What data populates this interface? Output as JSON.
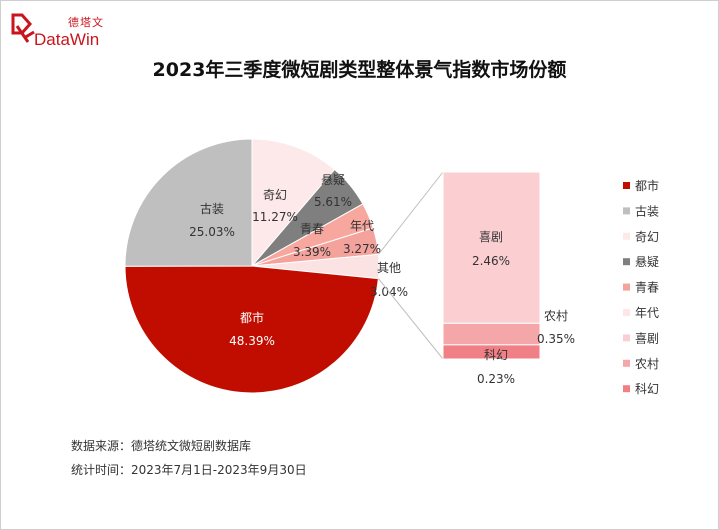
{
  "brand": {
    "logo_cn": "德塔文",
    "logo_en": "DataWin"
  },
  "chart_data": {
    "type": "pie",
    "title": "2023年三季度微短剧类型整体景气指数市场份额",
    "unit": "%",
    "slices": [
      {
        "name": "都市",
        "value": 48.39,
        "label": "48.39%",
        "color": "#c00d00"
      },
      {
        "name": "古装",
        "value": 25.03,
        "label": "25.03%",
        "color": "#bfbfbf"
      },
      {
        "name": "奇幻",
        "value": 11.27,
        "label": "11.27%",
        "color": "#fde8ea"
      },
      {
        "name": "悬疑",
        "value": 5.61,
        "label": "5.61%",
        "color": "#7f7f7f"
      },
      {
        "name": "青春",
        "value": 3.39,
        "label": "3.39%",
        "color": "#f4a29c"
      },
      {
        "name": "年代",
        "value": 3.27,
        "label": "3.27%",
        "color": "#f7a79d"
      },
      {
        "name": "其他",
        "value": 3.04,
        "label": "3.04%",
        "color": "#fbe3e4"
      }
    ],
    "breakdown_of": "其他",
    "breakdown": [
      {
        "name": "喜剧",
        "value": 2.46,
        "label": "2.46%",
        "color": "#fbcfd2"
      },
      {
        "name": "农村",
        "value": 0.35,
        "label": "0.35%",
        "color": "#f4a6a8"
      },
      {
        "name": "科幻",
        "value": 0.23,
        "label": "0.23%",
        "color": "#f07f86"
      }
    ],
    "legend": {
      "position": "right",
      "items": [
        {
          "name": "都市",
          "color": "#c00d00"
        },
        {
          "name": "古装",
          "color": "#bfbfbf"
        },
        {
          "name": "奇幻",
          "color": "#fde8ea"
        },
        {
          "name": "悬疑",
          "color": "#7f7f7f"
        },
        {
          "name": "青春",
          "color": "#f4a29c"
        },
        {
          "name": "年代",
          "color": "#fde5e8"
        },
        {
          "name": "喜剧",
          "color": "#fbcfd2"
        },
        {
          "name": "农村",
          "color": "#f4a6a8"
        },
        {
          "name": "科幻",
          "color": "#f07f86"
        }
      ]
    }
  },
  "footer": {
    "source": "数据来源：德塔统文微短剧数据库",
    "period": "统计时间：2023年7月1日-2023年9月30日"
  }
}
